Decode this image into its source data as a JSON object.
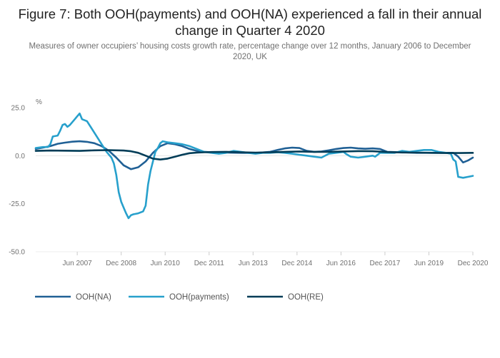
{
  "chart_data": {
    "type": "line",
    "title": "Figure 7: Both OOH(payments) and OOH(NA) experienced a fall in their annual change in Quarter 4 2020",
    "subtitle": "Measures of owner occupiers’ housing costs growth rate, percentage change over 12 months, January 2006 to December 2020, UK",
    "ylabel": "%",
    "xlabel": "",
    "ylim": [
      -50,
      25
    ],
    "yticks": [
      {
        "value": 25,
        "label": "25.0"
      },
      {
        "value": 0,
        "label": "0.0"
      },
      {
        "value": -25,
        "label": "-25.0"
      },
      {
        "value": -50,
        "label": "-50.0"
      }
    ],
    "xlim": [
      2006.0,
      2020.917
    ],
    "xticks": [
      {
        "value": 2007.417,
        "label": "Jun 2007"
      },
      {
        "value": 2008.917,
        "label": "Dec 2008"
      },
      {
        "value": 2010.417,
        "label": "Jun 2010"
      },
      {
        "value": 2011.917,
        "label": "Dec 2011"
      },
      {
        "value": 2013.417,
        "label": "Jun 2013"
      },
      {
        "value": 2014.917,
        "label": "Dec 2014"
      },
      {
        "value": 2016.417,
        "label": "Jun 2016"
      },
      {
        "value": 2017.917,
        "label": "Dec 2017"
      },
      {
        "value": 2019.417,
        "label": "Jun 2019"
      },
      {
        "value": 2020.917,
        "label": "Dec 2020"
      }
    ],
    "grid": false,
    "legend_position": "bottom-left",
    "series": [
      {
        "name": "OOH(NA)",
        "color": "#206095",
        "points": [
          [
            2006.0,
            3.5
          ],
          [
            2006.25,
            4.2
          ],
          [
            2006.5,
            5.0
          ],
          [
            2006.75,
            6.2
          ],
          [
            2007.0,
            6.8
          ],
          [
            2007.25,
            7.3
          ],
          [
            2007.5,
            7.5
          ],
          [
            2007.75,
            7.2
          ],
          [
            2008.0,
            6.5
          ],
          [
            2008.25,
            5.0
          ],
          [
            2008.5,
            2.5
          ],
          [
            2008.75,
            -1.0
          ],
          [
            2009.0,
            -5.0
          ],
          [
            2009.25,
            -7.0
          ],
          [
            2009.5,
            -6.0
          ],
          [
            2009.75,
            -3.0
          ],
          [
            2010.0,
            1.5
          ],
          [
            2010.25,
            5.0
          ],
          [
            2010.5,
            6.5
          ],
          [
            2010.75,
            6.0
          ],
          [
            2011.0,
            5.0
          ],
          [
            2011.25,
            3.5
          ],
          [
            2011.5,
            2.5
          ],
          [
            2011.75,
            2.0
          ],
          [
            2012.0,
            1.8
          ],
          [
            2012.5,
            1.6
          ],
          [
            2013.0,
            1.5
          ],
          [
            2013.5,
            1.4
          ],
          [
            2014.0,
            2.0
          ],
          [
            2014.25,
            3.0
          ],
          [
            2014.5,
            3.8
          ],
          [
            2014.75,
            4.2
          ],
          [
            2015.0,
            4.0
          ],
          [
            2015.25,
            2.5
          ],
          [
            2015.5,
            2.0
          ],
          [
            2015.75,
            2.2
          ],
          [
            2016.0,
            2.8
          ],
          [
            2016.25,
            3.5
          ],
          [
            2016.5,
            4.0
          ],
          [
            2016.75,
            4.2
          ],
          [
            2017.0,
            3.8
          ],
          [
            2017.25,
            3.6
          ],
          [
            2017.5,
            3.8
          ],
          [
            2017.75,
            3.5
          ],
          [
            2018.0,
            2.0
          ],
          [
            2018.5,
            1.8
          ],
          [
            2019.0,
            1.5
          ],
          [
            2019.5,
            1.5
          ],
          [
            2020.0,
            1.5
          ],
          [
            2020.25,
            1.5
          ],
          [
            2020.417,
            -0.5
          ],
          [
            2020.583,
            -3.5
          ],
          [
            2020.75,
            -2.5
          ],
          [
            2020.917,
            -1.0
          ]
        ]
      },
      {
        "name": "OOH(payments)",
        "color": "#27a0cc",
        "points": [
          [
            2006.0,
            4.0
          ],
          [
            2006.25,
            4.5
          ],
          [
            2006.417,
            4.5
          ],
          [
            2006.5,
            6.0
          ],
          [
            2006.583,
            10.0
          ],
          [
            2006.75,
            10.5
          ],
          [
            2006.833,
            13.0
          ],
          [
            2006.917,
            16.0
          ],
          [
            2007.0,
            16.5
          ],
          [
            2007.083,
            15.0
          ],
          [
            2007.167,
            16.0
          ],
          [
            2007.333,
            19.0
          ],
          [
            2007.417,
            20.5
          ],
          [
            2007.5,
            22.0
          ],
          [
            2007.583,
            19.0
          ],
          [
            2007.75,
            18.0
          ],
          [
            2007.917,
            14.0
          ],
          [
            2008.083,
            10.0
          ],
          [
            2008.25,
            6.0
          ],
          [
            2008.417,
            2.0
          ],
          [
            2008.583,
            -1.0
          ],
          [
            2008.667,
            -4.0
          ],
          [
            2008.75,
            -10.0
          ],
          [
            2008.833,
            -19.0
          ],
          [
            2008.917,
            -24.0
          ],
          [
            2009.0,
            -27.0
          ],
          [
            2009.083,
            -30.0
          ],
          [
            2009.167,
            -32.5
          ],
          [
            2009.25,
            -31.0
          ],
          [
            2009.333,
            -30.5
          ],
          [
            2009.5,
            -30.0
          ],
          [
            2009.667,
            -29.0
          ],
          [
            2009.75,
            -26.0
          ],
          [
            2009.833,
            -15.0
          ],
          [
            2009.917,
            -8.0
          ],
          [
            2010.0,
            -3.0
          ],
          [
            2010.083,
            2.0
          ],
          [
            2010.167,
            4.0
          ],
          [
            2010.25,
            6.5
          ],
          [
            2010.333,
            7.5
          ],
          [
            2010.5,
            7.0
          ],
          [
            2010.75,
            6.5
          ],
          [
            2011.0,
            6.0
          ],
          [
            2011.25,
            5.0
          ],
          [
            2011.5,
            3.5
          ],
          [
            2011.75,
            2.0
          ],
          [
            2012.0,
            1.5
          ],
          [
            2012.25,
            1.0
          ],
          [
            2012.5,
            1.5
          ],
          [
            2012.75,
            2.5
          ],
          [
            2013.0,
            2.0
          ],
          [
            2013.25,
            1.5
          ],
          [
            2013.5,
            1.0
          ],
          [
            2013.75,
            1.5
          ],
          [
            2014.0,
            1.5
          ],
          [
            2014.25,
            1.8
          ],
          [
            2014.5,
            1.5
          ],
          [
            2014.75,
            1.0
          ],
          [
            2015.0,
            0.5
          ],
          [
            2015.25,
            0.0
          ],
          [
            2015.5,
            -0.5
          ],
          [
            2015.75,
            -1.0
          ],
          [
            2016.0,
            1.0
          ],
          [
            2016.25,
            1.5
          ],
          [
            2016.5,
            2.0
          ],
          [
            2016.583,
            1.0
          ],
          [
            2016.75,
            -0.5
          ],
          [
            2017.0,
            -1.0
          ],
          [
            2017.25,
            -0.5
          ],
          [
            2017.5,
            0.0
          ],
          [
            2017.583,
            -0.5
          ],
          [
            2017.75,
            1.5
          ],
          [
            2018.0,
            1.5
          ],
          [
            2018.25,
            1.5
          ],
          [
            2018.5,
            2.5
          ],
          [
            2018.75,
            2.0
          ],
          [
            2019.0,
            2.5
          ],
          [
            2019.25,
            3.0
          ],
          [
            2019.5,
            3.0
          ],
          [
            2019.75,
            2.0
          ],
          [
            2020.0,
            1.5
          ],
          [
            2020.167,
            1.0
          ],
          [
            2020.25,
            -2.0
          ],
          [
            2020.333,
            -3.0
          ],
          [
            2020.417,
            -11.0
          ],
          [
            2020.583,
            -11.5
          ],
          [
            2020.75,
            -11.0
          ],
          [
            2020.917,
            -10.5
          ]
        ]
      },
      {
        "name": "OOH(RE)",
        "color": "#003c57",
        "points": [
          [
            2006.0,
            2.5
          ],
          [
            2006.5,
            2.7
          ],
          [
            2007.0,
            2.6
          ],
          [
            2007.5,
            2.5
          ],
          [
            2008.0,
            2.8
          ],
          [
            2008.5,
            2.9
          ],
          [
            2009.0,
            2.7
          ],
          [
            2009.25,
            2.3
          ],
          [
            2009.5,
            1.5
          ],
          [
            2009.75,
            0.0
          ],
          [
            2010.0,
            -1.5
          ],
          [
            2010.25,
            -2.0
          ],
          [
            2010.5,
            -1.5
          ],
          [
            2010.75,
            -0.5
          ],
          [
            2011.0,
            0.5
          ],
          [
            2011.25,
            1.3
          ],
          [
            2011.5,
            1.6
          ],
          [
            2011.75,
            1.8
          ],
          [
            2012.0,
            1.9
          ],
          [
            2012.5,
            2.0
          ],
          [
            2013.0,
            1.8
          ],
          [
            2013.5,
            1.6
          ],
          [
            2014.0,
            1.8
          ],
          [
            2014.5,
            2.0
          ],
          [
            2015.0,
            2.2
          ],
          [
            2015.5,
            2.0
          ],
          [
            2016.0,
            2.0
          ],
          [
            2016.5,
            2.2
          ],
          [
            2017.0,
            2.4
          ],
          [
            2017.5,
            2.3
          ],
          [
            2018.0,
            1.9
          ],
          [
            2018.5,
            1.7
          ],
          [
            2019.0,
            1.6
          ],
          [
            2019.5,
            1.5
          ],
          [
            2020.0,
            1.4
          ],
          [
            2020.5,
            1.4
          ],
          [
            2020.917,
            1.5
          ]
        ]
      }
    ]
  }
}
